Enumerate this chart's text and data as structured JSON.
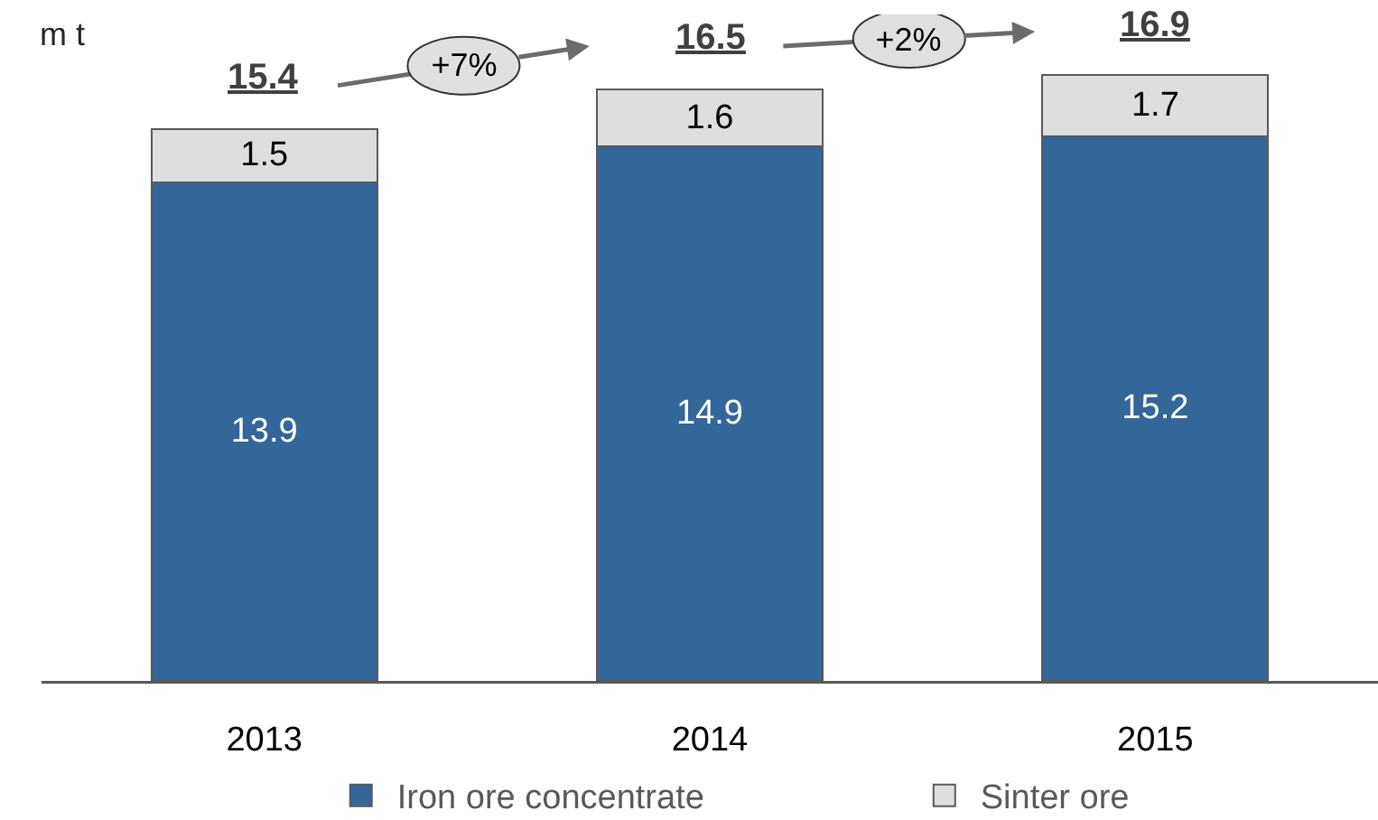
{
  "chart_data": {
    "type": "bar",
    "ylabel": "m t",
    "categories": [
      "2013",
      "2014",
      "2015"
    ],
    "series": [
      {
        "name": "Iron ore concentrate",
        "color": "#336699",
        "values": [
          13.9,
          14.9,
          15.2
        ]
      },
      {
        "name": "Sinter ore",
        "color": "#dedede",
        "values": [
          1.5,
          1.6,
          1.7
        ]
      }
    ],
    "stacked": true,
    "data_labels": true,
    "totals": [
      "15.4",
      "16.5",
      "16.9"
    ],
    "annotations": [
      "+7%",
      "+2%"
    ],
    "legend": "bottom"
  }
}
